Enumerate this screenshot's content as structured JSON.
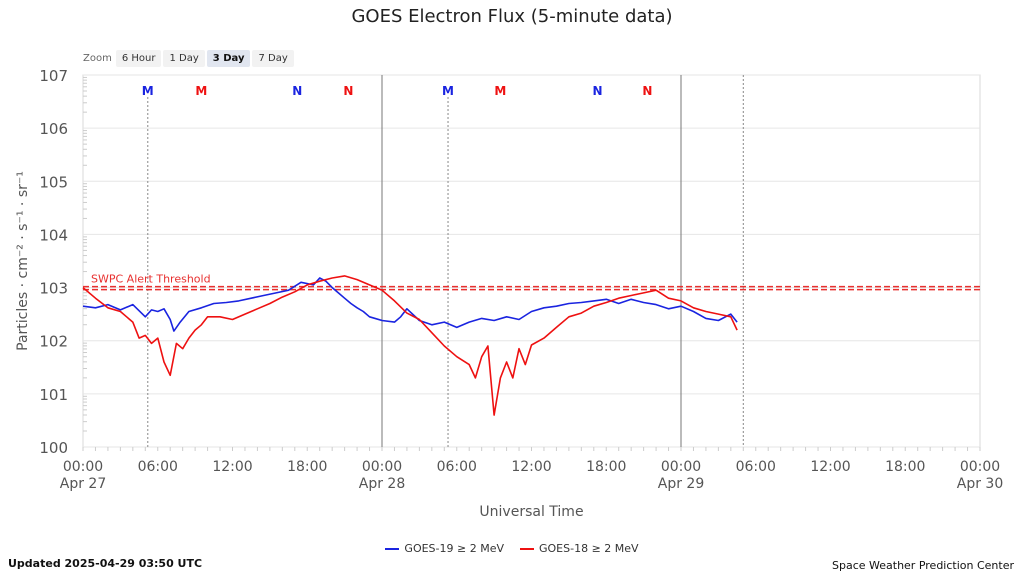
{
  "page": {
    "title": "GOES Electron Flux (5-minute data)",
    "updated": "Updated 2025-04-29 03:50 UTC",
    "credit": "Space Weather Prediction Center"
  },
  "zoom": {
    "label": "Zoom",
    "options": [
      "6 Hour",
      "1 Day",
      "3 Day",
      "7 Day"
    ],
    "selected": "3 Day"
  },
  "colors": {
    "goes19": "#1a24e0",
    "goes18": "#ee1111",
    "threshold": "#e8302f"
  },
  "chart_data": {
    "type": "line",
    "title": "GOES Electron Flux (5-minute data)",
    "xlabel": "Universal Time",
    "ylabel": "Particles · cm⁻² · s⁻¹ · sr⁻¹",
    "x_unit": "hours since Apr 27 00:00 UTC",
    "xlim": [
      0,
      72
    ],
    "ylim_log10": [
      0,
      7
    ],
    "y_ticks": [
      {
        "exp": 0,
        "label": "100"
      },
      {
        "exp": 1,
        "label": "101"
      },
      {
        "exp": 2,
        "label": "102"
      },
      {
        "exp": 3,
        "label": "103"
      },
      {
        "exp": 4,
        "label": "104"
      },
      {
        "exp": 5,
        "label": "105"
      },
      {
        "exp": 6,
        "label": "106"
      },
      {
        "exp": 7,
        "label": "107"
      }
    ],
    "x_ticks": [
      {
        "h": 0,
        "label": "00:00",
        "date": "Apr 27"
      },
      {
        "h": 6,
        "label": "06:00"
      },
      {
        "h": 12,
        "label": "12:00"
      },
      {
        "h": 18,
        "label": "18:00"
      },
      {
        "h": 24,
        "label": "00:00",
        "date": "Apr 28"
      },
      {
        "h": 30,
        "label": "06:00"
      },
      {
        "h": 36,
        "label": "12:00"
      },
      {
        "h": 42,
        "label": "18:00"
      },
      {
        "h": 48,
        "label": "00:00",
        "date": "Apr 29"
      },
      {
        "h": 54,
        "label": "06:00"
      },
      {
        "h": 60,
        "label": "12:00"
      },
      {
        "h": 66,
        "label": "18:00"
      },
      {
        "h": 72,
        "label": "00:00",
        "date": "Apr 30"
      }
    ],
    "day_lines": [
      24,
      48
    ],
    "now_line": 53,
    "threshold": {
      "value_log10": 3.0,
      "label": "SWPC Alert Threshold"
    },
    "markers": [
      {
        "h": 5.2,
        "text": "M",
        "sat": "goes19"
      },
      {
        "h": 9.5,
        "text": "M",
        "sat": "goes18"
      },
      {
        "h": 17.2,
        "text": "N",
        "sat": "goes19"
      },
      {
        "h": 21.3,
        "text": "N",
        "sat": "goes18"
      },
      {
        "h": 29.3,
        "text": "M",
        "sat": "goes19"
      },
      {
        "h": 33.5,
        "text": "M",
        "sat": "goes18"
      },
      {
        "h": 41.3,
        "text": "N",
        "sat": "goes19"
      },
      {
        "h": 45.3,
        "text": "N",
        "sat": "goes18"
      }
    ],
    "series": [
      {
        "name": "GOES-19 ≥ 2 MeV",
        "color_key": "goes19",
        "points": [
          [
            0,
            2.65
          ],
          [
            1,
            2.62
          ],
          [
            2,
            2.68
          ],
          [
            3,
            2.58
          ],
          [
            4,
            2.68
          ],
          [
            5,
            2.45
          ],
          [
            5.5,
            2.58
          ],
          [
            6,
            2.55
          ],
          [
            6.5,
            2.6
          ],
          [
            7,
            2.4
          ],
          [
            7.3,
            2.18
          ],
          [
            7.8,
            2.35
          ],
          [
            8.5,
            2.55
          ],
          [
            9.5,
            2.62
          ],
          [
            10.5,
            2.7
          ],
          [
            11.5,
            2.72
          ],
          [
            12.5,
            2.75
          ],
          [
            13.5,
            2.8
          ],
          [
            14.5,
            2.85
          ],
          [
            15.5,
            2.9
          ],
          [
            16.5,
            2.95
          ],
          [
            17.5,
            3.1
          ],
          [
            18.5,
            3.05
          ],
          [
            19,
            3.18
          ],
          [
            19.5,
            3.12
          ],
          [
            20,
            3.0
          ],
          [
            20.5,
            2.9
          ],
          [
            21,
            2.8
          ],
          [
            21.5,
            2.7
          ],
          [
            22,
            2.62
          ],
          [
            22.5,
            2.55
          ],
          [
            23,
            2.45
          ],
          [
            24,
            2.38
          ],
          [
            25,
            2.35
          ],
          [
            25.5,
            2.45
          ],
          [
            26,
            2.6
          ],
          [
            27,
            2.38
          ],
          [
            28,
            2.3
          ],
          [
            29,
            2.35
          ],
          [
            30,
            2.25
          ],
          [
            31,
            2.35
          ],
          [
            32,
            2.42
          ],
          [
            33,
            2.38
          ],
          [
            34,
            2.45
          ],
          [
            35,
            2.4
          ],
          [
            36,
            2.55
          ],
          [
            37,
            2.62
          ],
          [
            38,
            2.65
          ],
          [
            39,
            2.7
          ],
          [
            40,
            2.72
          ],
          [
            41,
            2.75
          ],
          [
            42,
            2.78
          ],
          [
            43,
            2.7
          ],
          [
            44,
            2.78
          ],
          [
            45,
            2.72
          ],
          [
            46,
            2.68
          ],
          [
            47,
            2.6
          ],
          [
            48,
            2.65
          ],
          [
            49,
            2.55
          ],
          [
            50,
            2.42
          ],
          [
            51,
            2.38
          ],
          [
            52,
            2.5
          ],
          [
            52.5,
            2.35
          ]
        ]
      },
      {
        "name": "GOES-18 ≥ 2 MeV",
        "color_key": "goes18",
        "points": [
          [
            0,
            3.0
          ],
          [
            1,
            2.8
          ],
          [
            2,
            2.62
          ],
          [
            3,
            2.55
          ],
          [
            4,
            2.35
          ],
          [
            4.5,
            2.05
          ],
          [
            5,
            2.1
          ],
          [
            5.5,
            1.95
          ],
          [
            6,
            2.05
          ],
          [
            6.5,
            1.6
          ],
          [
            7,
            1.35
          ],
          [
            7.5,
            1.95
          ],
          [
            8,
            1.85
          ],
          [
            8.5,
            2.05
          ],
          [
            9,
            2.2
          ],
          [
            9.5,
            2.3
          ],
          [
            10,
            2.45
          ],
          [
            11,
            2.45
          ],
          [
            12,
            2.4
          ],
          [
            13,
            2.5
          ],
          [
            14,
            2.6
          ],
          [
            15,
            2.7
          ],
          [
            16,
            2.82
          ],
          [
            17,
            2.92
          ],
          [
            18,
            3.05
          ],
          [
            19,
            3.12
          ],
          [
            20,
            3.18
          ],
          [
            21,
            3.22
          ],
          [
            22,
            3.15
          ],
          [
            23,
            3.05
          ],
          [
            24,
            2.95
          ],
          [
            25,
            2.75
          ],
          [
            26,
            2.52
          ],
          [
            27,
            2.4
          ],
          [
            28,
            2.15
          ],
          [
            29,
            1.9
          ],
          [
            30,
            1.7
          ],
          [
            31,
            1.55
          ],
          [
            31.5,
            1.3
          ],
          [
            32,
            1.7
          ],
          [
            32.5,
            1.9
          ],
          [
            33,
            0.6
          ],
          [
            33.5,
            1.3
          ],
          [
            34,
            1.6
          ],
          [
            34.5,
            1.3
          ],
          [
            35,
            1.85
          ],
          [
            35.5,
            1.55
          ],
          [
            36,
            1.92
          ],
          [
            37,
            2.05
          ],
          [
            38,
            2.25
          ],
          [
            39,
            2.45
          ],
          [
            40,
            2.52
          ],
          [
            41,
            2.65
          ],
          [
            42,
            2.72
          ],
          [
            43,
            2.8
          ],
          [
            44,
            2.85
          ],
          [
            45,
            2.9
          ],
          [
            46,
            2.95
          ],
          [
            47,
            2.8
          ],
          [
            48,
            2.75
          ],
          [
            49,
            2.62
          ],
          [
            50,
            2.55
          ],
          [
            51,
            2.5
          ],
          [
            52,
            2.45
          ],
          [
            52.5,
            2.2
          ]
        ]
      }
    ]
  }
}
